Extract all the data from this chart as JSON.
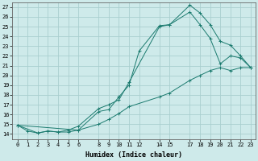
{
  "xlabel": "Humidex (Indice chaleur)",
  "bg_color": "#ceeaea",
  "grid_color": "#aacfcf",
  "line_color": "#1a7a6e",
  "xlim": [
    -0.5,
    23.5
  ],
  "ylim": [
    13.5,
    27.5
  ],
  "xticks": [
    0,
    1,
    2,
    3,
    4,
    5,
    6,
    8,
    9,
    10,
    11,
    12,
    14,
    15,
    17,
    18,
    19,
    20,
    21,
    22,
    23
  ],
  "yticks": [
    14,
    15,
    16,
    17,
    18,
    19,
    20,
    21,
    22,
    23,
    24,
    25,
    26,
    27
  ],
  "curve1_x": [
    0,
    1,
    2,
    3,
    4,
    5,
    6,
    8,
    9,
    10,
    11,
    12,
    14,
    15,
    17,
    18,
    19,
    20,
    21,
    22,
    23
  ],
  "curve1_y": [
    14.9,
    14.3,
    14.1,
    14.3,
    14.2,
    14.2,
    14.4,
    16.3,
    16.5,
    17.8,
    19.0,
    22.5,
    25.1,
    25.2,
    27.2,
    26.4,
    25.2,
    23.5,
    23.1,
    22.0,
    20.8
  ],
  "curve2_x": [
    0,
    2,
    3,
    4,
    5,
    6,
    8,
    9,
    10,
    11,
    14,
    15,
    17,
    18,
    19,
    20,
    21,
    22,
    23
  ],
  "curve2_y": [
    14.9,
    14.1,
    14.3,
    14.2,
    14.4,
    14.8,
    16.6,
    17.0,
    17.5,
    19.3,
    25.0,
    25.2,
    26.5,
    25.2,
    23.8,
    21.2,
    22.0,
    21.8,
    20.8
  ],
  "curve3_x": [
    0,
    6,
    8,
    9,
    10,
    11,
    14,
    15,
    17,
    18,
    19,
    20,
    21,
    22,
    23
  ],
  "curve3_y": [
    14.9,
    14.4,
    15.0,
    15.5,
    16.1,
    16.8,
    17.8,
    18.2,
    19.5,
    20.0,
    20.5,
    20.8,
    20.5,
    20.8,
    20.8
  ]
}
